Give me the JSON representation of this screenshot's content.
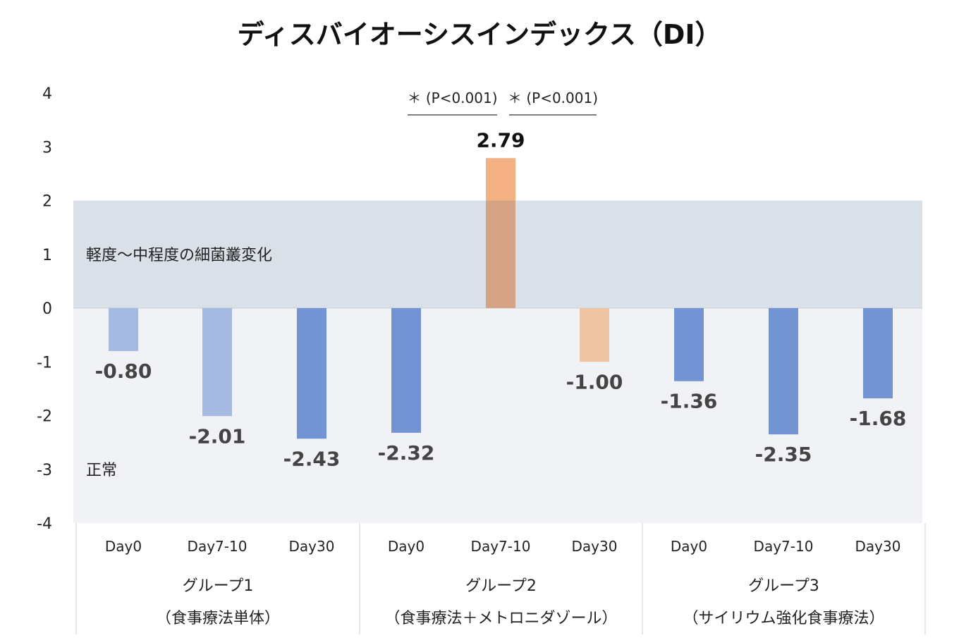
{
  "chart_data": {
    "type": "bar",
    "title": "ディスバイオーシスインデックス（DI）",
    "ylim": [
      -4,
      4
    ],
    "yticks": [
      4,
      3,
      2,
      1,
      0,
      -1,
      -2,
      -3,
      -4
    ],
    "bands": [
      {
        "name": "mild_to_moderate",
        "label": "軽度〜中程度の細菌叢変化",
        "from": 0,
        "to": 2,
        "color": "#d9e0e8"
      },
      {
        "name": "normal",
        "label": "正常",
        "from": -4,
        "to": 0,
        "color": "#f0f2f6"
      }
    ],
    "groups": [
      {
        "name": "グループ1",
        "subtitle": "（食事療法単体）",
        "bars": [
          {
            "label": "Day0",
            "value": -0.8,
            "display": "-0.80",
            "color": "#a6b9e0"
          },
          {
            "label": "Day7-10",
            "value": -2.01,
            "display": "-2.01",
            "color": "#a6b9e0"
          },
          {
            "label": "Day30",
            "value": -2.43,
            "display": "-2.43",
            "color": "#7294d2"
          }
        ]
      },
      {
        "name": "グループ2",
        "subtitle": "（食事療法＋メトロニダゾール）",
        "bars": [
          {
            "label": "Day0",
            "value": -2.32,
            "display": "-2.32",
            "color": "#7294d2"
          },
          {
            "label": "Day7-10",
            "value": 2.79,
            "display": "2.79",
            "color": "#f3b184",
            "emphasis": true
          },
          {
            "label": "Day30",
            "value": -1.0,
            "display": "-1.00",
            "color": "#efc4a3"
          }
        ]
      },
      {
        "name": "グループ3",
        "subtitle": "（サイリウム強化食事療法）",
        "bars": [
          {
            "label": "Day0",
            "value": -1.36,
            "display": "-1.36",
            "color": "#7294d2"
          },
          {
            "label": "Day7-10",
            "value": -2.35,
            "display": "-2.35",
            "color": "#7294d2"
          },
          {
            "label": "Day30",
            "value": -1.68,
            "display": "-1.68",
            "color": "#7294d2"
          }
        ]
      }
    ],
    "annotations": [
      {
        "text": "＊ (P<0.001)",
        "group": 1,
        "from_bar": 0,
        "to_bar": 1
      },
      {
        "text": "＊ (P<0.001)",
        "group": 1,
        "from_bar": 1,
        "to_bar": 2
      }
    ]
  }
}
